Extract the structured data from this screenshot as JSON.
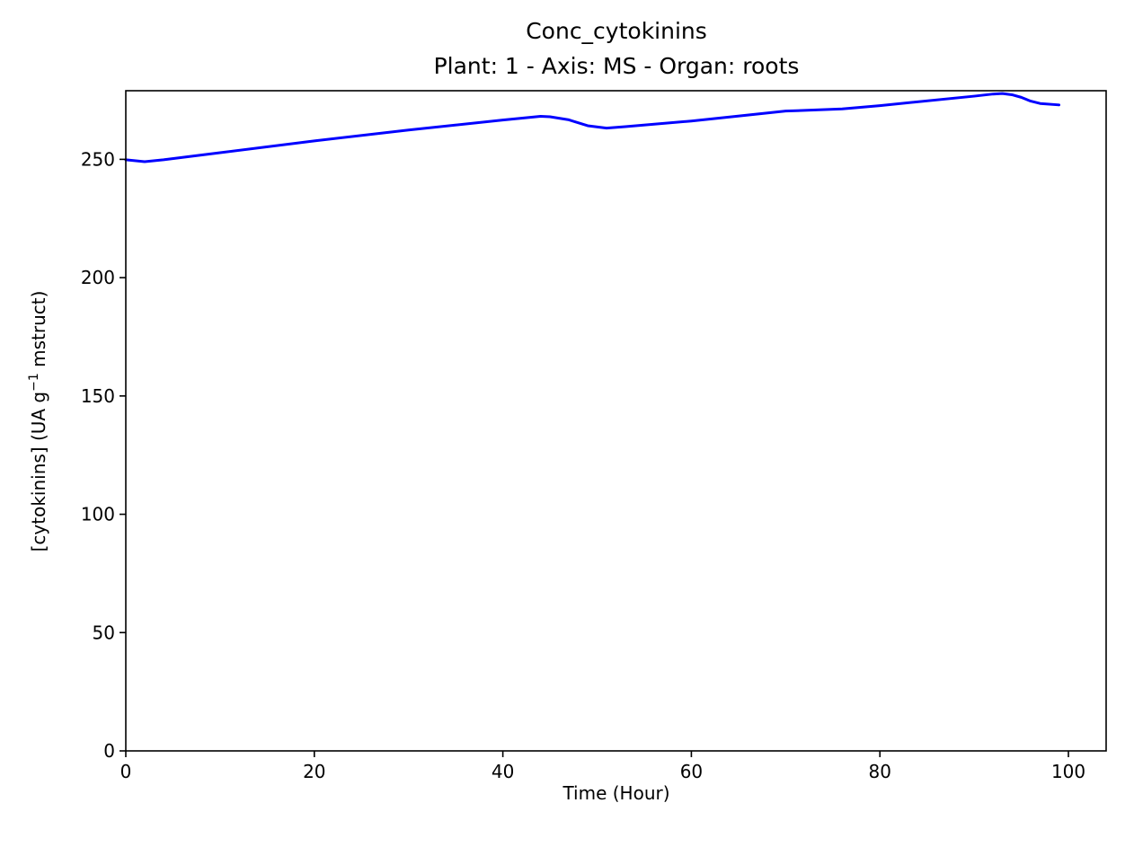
{
  "chart_data": {
    "type": "line",
    "title": "Conc_cytokinins",
    "subtitle": "Plant: 1 - Axis: MS - Organ: roots",
    "xlabel": "Time (Hour)",
    "ylabel_prefix": "[cytokinins] (UA g",
    "ylabel_superscript": "−1",
    "ylabel_suffix": " mstruct)",
    "xlim": [
      0,
      104
    ],
    "ylim": [
      0,
      279
    ],
    "xticks": [
      0,
      20,
      40,
      60,
      80,
      100
    ],
    "yticks": [
      0,
      50,
      100,
      150,
      200,
      250
    ],
    "grid": false,
    "colors": {
      "line": "#0000ff",
      "axes": "#000000",
      "background": "#ffffff"
    },
    "series": [
      {
        "x": [
          0,
          2,
          4,
          10,
          20,
          30,
          40,
          44,
          45,
          47,
          49,
          51,
          53,
          60,
          70,
          76,
          80,
          90,
          92,
          93,
          94,
          95,
          96,
          97,
          99
        ],
        "values": [
          249.8,
          249.0,
          249.8,
          252.8,
          257.8,
          262.4,
          266.6,
          268.2,
          268.0,
          266.7,
          264.2,
          263.2,
          263.8,
          266.2,
          270.4,
          271.3,
          272.7,
          276.7,
          277.6,
          277.8,
          277.3,
          276.2,
          274.6,
          273.6,
          273.0
        ]
      }
    ]
  }
}
